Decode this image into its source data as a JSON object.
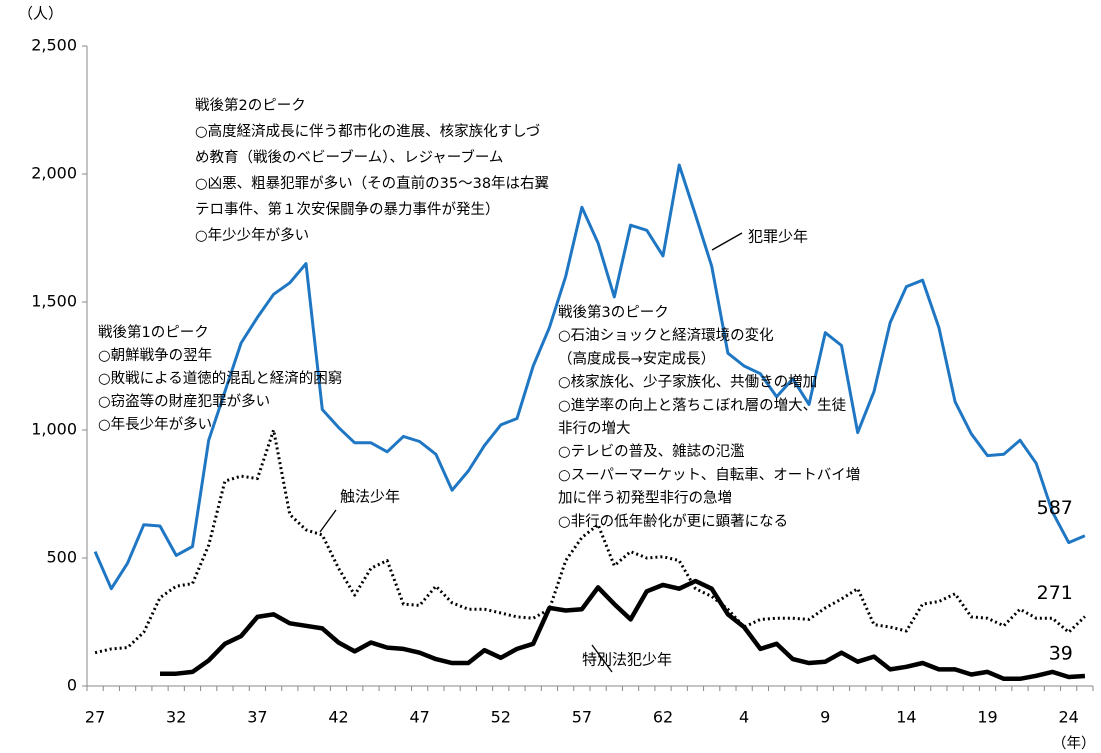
{
  "chart_data": {
    "type": "line",
    "y_unit": "（人）",
    "x_unit": "（年）",
    "categories": [
      "27",
      null,
      null,
      null,
      null,
      "32",
      null,
      null,
      null,
      null,
      "37",
      null,
      null,
      null,
      null,
      "42",
      null,
      null,
      null,
      null,
      "47",
      null,
      null,
      null,
      null,
      "52",
      null,
      null,
      null,
      null,
      "57",
      null,
      null,
      null,
      null,
      "62",
      null,
      null,
      null,
      null,
      "4",
      null,
      null,
      null,
      null,
      "9",
      null,
      null,
      null,
      null,
      "14",
      null,
      null,
      null,
      null,
      "19",
      null,
      null,
      null,
      null,
      "24",
      null
    ],
    "ylim": [
      0,
      2500
    ],
    "yticks": [
      0,
      500,
      {
        "value": 1000,
        "label": "1,000"
      },
      {
        "value": 1500,
        "label": "1,500"
      },
      {
        "value": 2000,
        "label": "2,000"
      },
      {
        "value": 2500,
        "label": "2,500"
      }
    ],
    "series": [
      {
        "name": "犯罪少年",
        "color": "#1f77c4",
        "style": "solid",
        "values": [
          525,
          380,
          480,
          630,
          625,
          510,
          545,
          960,
          1150,
          1340,
          1440,
          1530,
          1575,
          1650,
          1080,
          1010,
          950,
          950,
          915,
          975,
          955,
          905,
          765,
          840,
          940,
          1020,
          1045,
          1250,
          1400,
          1600,
          1870,
          1730,
          1520,
          1800,
          1780,
          1680,
          2035,
          1840,
          1640,
          1300,
          1250,
          1220,
          1130,
          1200,
          1100,
          1380,
          1330,
          990,
          1150,
          1420,
          1560,
          1585,
          1400,
          1110,
          985,
          900,
          905,
          960,
          870,
          680,
          560,
          587
        ]
      },
      {
        "name": "触法少年",
        "color": "#000000",
        "style": "dotted",
        "values": [
          130,
          145,
          150,
          210,
          345,
          390,
          400,
          550,
          800,
          820,
          810,
          1000,
          670,
          610,
          590,
          460,
          355,
          460,
          490,
          320,
          315,
          390,
          325,
          300,
          300,
          285,
          270,
          265,
          300,
          490,
          580,
          630,
          470,
          525,
          500,
          505,
          490,
          380,
          350,
          300,
          230,
          260,
          265,
          265,
          260,
          305,
          340,
          380,
          240,
          230,
          215,
          320,
          330,
          360,
          270,
          265,
          235,
          300,
          265,
          265,
          210,
          271
        ]
      },
      {
        "name": "特別法犯少年",
        "color": "#000000",
        "style": "thick",
        "values": [
          null,
          null,
          null,
          null,
          48,
          48,
          55,
          100,
          165,
          195,
          270,
          280,
          245,
          235,
          225,
          170,
          135,
          170,
          150,
          145,
          130,
          105,
          90,
          90,
          140,
          110,
          145,
          165,
          305,
          295,
          300,
          385,
          320,
          260,
          370,
          395,
          380,
          410,
          380,
          280,
          230,
          145,
          165,
          105,
          90,
          95,
          130,
          95,
          115,
          65,
          75,
          90,
          65,
          65,
          45,
          55,
          28,
          28,
          40,
          55,
          35,
          39
        ]
      }
    ],
    "annotations": [
      [
        "戦後第2のピーク",
        "○高度経済成長に伴う都市化の進展、核家族化すしづ",
        "め教育（戦後のベビーブーム）、レジャーブーム",
        "○凶悪、粗暴犯罪が多い（その直前の35～38年は右翼",
        "テロ事件、第１次安保闘争の暴力事件が発生）",
        "○年少少年が多い"
      ],
      [
        "戦後第1のピーク",
        "○朝鮮戦争の翌年",
        "○敗戦による道徳的混乱と経済的困窮",
        "○窃盗等の財産犯罪が多い",
        "○年長少年が多い"
      ],
      [
        "戦後第3のピーク",
        "○石油ショックと経済環境の変化",
        "（高度成長→安定成長）",
        "○核家族化、少子家族化、共働きの増加",
        "○進学率の向上と落ちこぼれ層の増大、生徒",
        "非行の増大",
        "○テレビの普及、雑誌の氾濫",
        "○スーパーマーケット、自転車、オートバイ増",
        "加に伴う初発型非行の急増",
        "○非行の低年齢化が更に顕著になる"
      ]
    ]
  }
}
